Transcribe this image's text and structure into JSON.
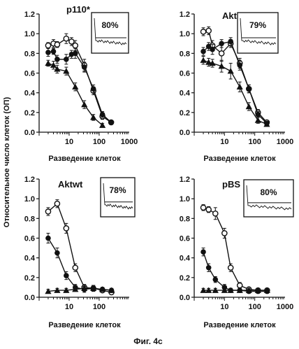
{
  "figure": {
    "caption": "Фиг. 4с",
    "ylabel": "Относительное число клеток (ОП)"
  },
  "chart_data": [
    {
      "type": "line",
      "title": "p110*",
      "xlabel": "Разведение клеток",
      "xscale": "log",
      "xlim": [
        1,
        1000
      ],
      "ylim": [
        0.0,
        1.2
      ],
      "xticks": [
        10,
        100,
        1000
      ],
      "xtick_labels": [
        "10",
        "100",
        "1000"
      ],
      "yticks": [
        0.0,
        0.2,
        0.4,
        0.6,
        0.8,
        1.0,
        1.2
      ],
      "ytick_labels": [
        "0.0",
        "0.2",
        "0.4",
        "0.6",
        "0.8",
        "1.0",
        "1.2"
      ],
      "inset_label": "80%",
      "series": [
        {
          "marker": "open-circle",
          "x": [
            2,
            3,
            4,
            8,
            12,
            16,
            32,
            64,
            128,
            250
          ],
          "y": [
            0.88,
            0.9,
            0.89,
            0.95,
            0.92,
            0.88,
            0.68,
            0.42,
            0.16,
            0.1
          ],
          "err": [
            0.03,
            0.04,
            0.03,
            0.05,
            0.04,
            0.05,
            0.06,
            0.04,
            0.03,
            0.02
          ]
        },
        {
          "marker": "filled-circle",
          "x": [
            2,
            3,
            4,
            8,
            12,
            16,
            32,
            64,
            128,
            250
          ],
          "y": [
            0.81,
            0.82,
            0.74,
            0.74,
            0.79,
            0.8,
            0.66,
            0.44,
            0.18,
            0.1
          ],
          "err": [
            0.04,
            0.03,
            0.04,
            0.05,
            0.04,
            0.05,
            0.05,
            0.04,
            0.03,
            0.02
          ]
        },
        {
          "marker": "filled-triangle",
          "x": [
            2,
            3,
            4,
            8,
            16,
            32,
            64,
            128
          ],
          "y": [
            0.7,
            0.68,
            0.64,
            0.62,
            0.46,
            0.28,
            0.15,
            0.07
          ],
          "err": [
            0.03,
            0.04,
            0.04,
            0.04,
            0.04,
            0.04,
            0.03,
            0.02
          ]
        }
      ]
    },
    {
      "type": "line",
      "title": "Aktmp",
      "xlabel": "Разведение клеток",
      "xscale": "log",
      "xlim": [
        1,
        1000
      ],
      "ylim": [
        0.0,
        1.2
      ],
      "xticks": [
        10,
        100,
        1000
      ],
      "xtick_labels": [
        "10",
        "100",
        "1000"
      ],
      "yticks": [
        0.0,
        0.2,
        0.4,
        0.6,
        0.8,
        1.0,
        1.2
      ],
      "ytick_labels": [
        "0.0",
        "0.2",
        "0.4",
        "0.6",
        "0.8",
        "1.0",
        "1.2"
      ],
      "inset_label": "79%",
      "series": [
        {
          "marker": "open-circle",
          "x": [
            2,
            3,
            4,
            8,
            16,
            32,
            64,
            128,
            250
          ],
          "y": [
            1.02,
            1.03,
            0.88,
            0.8,
            0.9,
            0.7,
            0.44,
            0.2,
            0.1
          ],
          "err": [
            0.04,
            0.04,
            0.05,
            0.08,
            0.04,
            0.05,
            0.04,
            0.03,
            0.02
          ]
        },
        {
          "marker": "filled-circle",
          "x": [
            2,
            3,
            4,
            8,
            16,
            32,
            64,
            128,
            250
          ],
          "y": [
            0.82,
            0.87,
            0.84,
            0.9,
            0.92,
            0.68,
            0.44,
            0.18,
            0.09
          ],
          "err": [
            0.04,
            0.04,
            0.05,
            0.04,
            0.04,
            0.05,
            0.04,
            0.03,
            0.02
          ]
        },
        {
          "marker": "filled-triangle",
          "x": [
            2,
            3,
            4,
            8,
            16,
            32,
            64,
            128,
            250
          ],
          "y": [
            0.73,
            0.71,
            0.7,
            0.67,
            0.62,
            0.46,
            0.26,
            0.12,
            0.08
          ],
          "err": [
            0.04,
            0.04,
            0.04,
            0.06,
            0.08,
            0.05,
            0.04,
            0.03,
            0.02
          ]
        }
      ]
    },
    {
      "type": "line",
      "title": "Aktwt",
      "xlabel": "Разведение клеток",
      "xscale": "log",
      "xlim": [
        1,
        1000
      ],
      "ylim": [
        0.0,
        1.2
      ],
      "xticks": [
        10,
        100
      ],
      "xtick_labels": [
        "10",
        "100"
      ],
      "yticks": [
        0.0,
        0.2,
        0.4,
        0.6,
        0.8,
        1.0,
        1.2
      ],
      "ytick_labels": [
        "0.0",
        "0.2",
        "0.4",
        "0.6",
        "0.8",
        "1.0",
        "1.2"
      ],
      "inset_label": "78%",
      "series": [
        {
          "marker": "open-circle",
          "x": [
            2,
            4,
            8,
            16,
            32,
            64,
            128,
            256
          ],
          "y": [
            0.87,
            0.95,
            0.7,
            0.3,
            0.1,
            0.09,
            0.07,
            0.05
          ],
          "err": [
            0.04,
            0.04,
            0.05,
            0.04,
            0.03,
            0.03,
            0.02,
            0.02
          ]
        },
        {
          "marker": "filled-circle",
          "x": [
            2,
            4,
            8,
            16,
            32,
            64,
            128,
            256
          ],
          "y": [
            0.6,
            0.45,
            0.22,
            0.1,
            0.08,
            0.09,
            0.08,
            0.07
          ],
          "err": [
            0.05,
            0.05,
            0.04,
            0.03,
            0.03,
            0.03,
            0.02,
            0.02
          ]
        },
        {
          "marker": "filled-triangle",
          "x": [
            2,
            4,
            8,
            16,
            32,
            64,
            128,
            256
          ],
          "y": [
            0.06,
            0.07,
            0.07,
            0.08,
            0.09,
            0.09,
            0.08,
            0.07
          ],
          "err": [
            0.02,
            0.02,
            0.02,
            0.02,
            0.03,
            0.03,
            0.02,
            0.02
          ]
        }
      ]
    },
    {
      "type": "line",
      "title": "pBS",
      "xlabel": "Разведение клеток",
      "xscale": "log",
      "xlim": [
        1,
        1000
      ],
      "ylim": [
        0.0,
        1.2
      ],
      "xticks": [
        10,
        100,
        1000
      ],
      "xtick_labels": [
        "10",
        "100",
        "1000"
      ],
      "yticks": [
        0.0,
        0.2,
        0.4,
        0.6,
        0.8,
        1.0,
        1.2
      ],
      "ytick_labels": [
        "0.0",
        "0.2",
        "0.4",
        "0.6",
        "0.8",
        "1.0",
        "1.2"
      ],
      "inset_label": "80%",
      "series": [
        {
          "marker": "open-circle",
          "x": [
            2,
            3,
            5,
            10,
            16,
            32,
            64,
            128,
            256
          ],
          "y": [
            0.91,
            0.89,
            0.85,
            0.65,
            0.3,
            0.12,
            0.08,
            0.07,
            0.07
          ],
          "err": [
            0.03,
            0.03,
            0.06,
            0.05,
            0.04,
            0.03,
            0.02,
            0.02,
            0.02
          ]
        },
        {
          "marker": "filled-circle",
          "x": [
            2,
            3,
            5,
            10,
            16,
            32,
            64,
            128,
            256
          ],
          "y": [
            0.46,
            0.3,
            0.18,
            0.1,
            0.07,
            0.07,
            0.06,
            0.06,
            0.06
          ],
          "err": [
            0.04,
            0.04,
            0.03,
            0.03,
            0.02,
            0.02,
            0.02,
            0.02,
            0.02
          ]
        },
        {
          "marker": "filled-triangle",
          "x": [
            2,
            3,
            5,
            10,
            16,
            32,
            64,
            128,
            256
          ],
          "y": [
            0.07,
            0.07,
            0.07,
            0.07,
            0.07,
            0.07,
            0.07,
            0.07,
            0.07
          ],
          "err": [
            0.02,
            0.02,
            0.02,
            0.02,
            0.02,
            0.02,
            0.02,
            0.02,
            0.02
          ]
        }
      ]
    }
  ]
}
